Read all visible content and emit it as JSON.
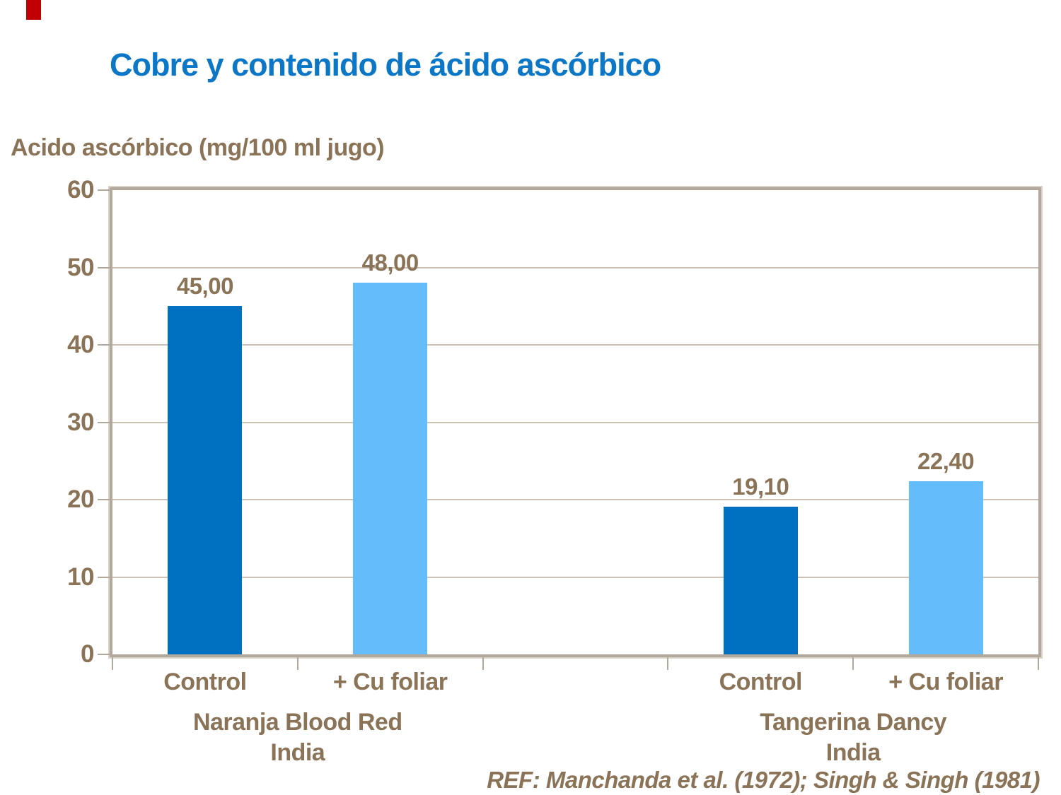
{
  "slide": {
    "title": "Cobre y contenido de ácido ascórbico",
    "ref_text": "REF: Manchanda et al. (1972); Singh & Singh (1981)",
    "accent_color": "#C00000",
    "title_color": "#0B77C6",
    "text_color": "#8A7357"
  },
  "chart_data": {
    "type": "bar",
    "title": "Cobre y contenido de ácido ascórbico",
    "ylabel": "Acido ascórbico (mg/100 ml jugo)",
    "xlabel": "",
    "ylim": [
      0,
      60
    ],
    "yticks": [
      0,
      10,
      20,
      30,
      40,
      50,
      60
    ],
    "grid": true,
    "legend": "none",
    "num_slots": 5,
    "groups": [
      {
        "line1": "Naranja Blood Red",
        "line2": "India",
        "slots": [
          0,
          1
        ]
      },
      {
        "line1": "Tangerina Dancy",
        "line2": "India",
        "slots": [
          3,
          4
        ]
      }
    ],
    "bars": [
      {
        "slot": 0,
        "group": 0,
        "category": "Control",
        "value": 45.0,
        "value_label": "45,00",
        "color": "#0070C0"
      },
      {
        "slot": 1,
        "group": 0,
        "category": "+ Cu foliar",
        "value": 48.0,
        "value_label": "48,00",
        "color": "#64BCFA"
      },
      {
        "slot": 3,
        "group": 1,
        "category": "Control",
        "value": 19.1,
        "value_label": "19,10",
        "color": "#0070C0"
      },
      {
        "slot": 4,
        "group": 1,
        "category": "+ Cu foliar",
        "value": 22.4,
        "value_label": "22,40",
        "color": "#64BCFA"
      }
    ],
    "series_colors": {
      "control": "#0070C0",
      "cu_foliar": "#64BCFA"
    },
    "frame_color": "#B2A99C",
    "gridline_color": "#CCC3B6"
  }
}
